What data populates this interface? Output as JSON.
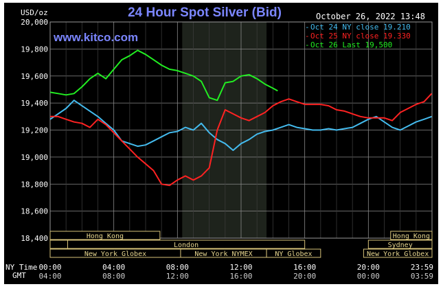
{
  "chart_data": {
    "type": "line",
    "title": "24 Hour Spot Silver (Bid)",
    "ylabel": "USD/oz",
    "watermark": "www.kitco.com",
    "timestamp": "October 26, 2022 13:48",
    "ylim": [
      18400,
      20000
    ],
    "yticks": [
      18400,
      18600,
      18800,
      19000,
      19200,
      19400,
      19600,
      19800,
      20000
    ],
    "ytick_labels": [
      "18,400",
      "18,600",
      "18,800",
      "19,000",
      "19,200",
      "19,400",
      "19,600",
      "19,800",
      "20,000"
    ],
    "x_range_hours": [
      0,
      24
    ],
    "xticks": [
      0,
      4,
      8,
      12,
      16,
      20,
      24
    ],
    "ny_time_label": "NY Time",
    "gmt_label": "GMT",
    "ny_time_ticks": [
      "00:00",
      "04:00",
      "08:00",
      "12:00",
      "16:00",
      "20:00",
      "23:59"
    ],
    "gmt_ticks": [
      "04:00",
      "08:00",
      "12:00",
      "16:00",
      "20:00",
      "00:00",
      "03:59"
    ],
    "shaded_region_hours": [
      8.3,
      13.6
    ],
    "grid": true,
    "legend_position": "top-right",
    "series": [
      {
        "name": "Oct 24 NY close 19.210",
        "color": "#44bbee",
        "x": [
          0,
          0.5,
          1,
          1.5,
          2,
          2.5,
          3,
          3.5,
          4,
          4.5,
          5,
          5.5,
          6,
          6.5,
          7,
          7.5,
          8,
          8.5,
          9,
          9.5,
          10,
          10.5,
          11,
          11.5,
          12,
          12.5,
          13,
          13.5,
          14,
          14.5,
          15,
          15.5,
          16,
          16.5,
          17,
          17.5,
          18,
          18.5,
          19,
          19.5,
          20,
          20.5,
          21,
          21.5,
          22,
          22.5,
          23,
          23.5,
          23.98
        ],
        "y": [
          19280,
          19320,
          19360,
          19420,
          19380,
          19340,
          19300,
          19250,
          19200,
          19120,
          19100,
          19080,
          19090,
          19120,
          19150,
          19180,
          19190,
          19220,
          19200,
          19250,
          19180,
          19130,
          19100,
          19050,
          19100,
          19130,
          19170,
          19190,
          19200,
          19220,
          19240,
          19220,
          19210,
          19200,
          19200,
          19210,
          19200,
          19210,
          19220,
          19250,
          19280,
          19300,
          19260,
          19220,
          19200,
          19230,
          19260,
          19280,
          19300
        ]
      },
      {
        "name": "Oct 25 NY close 19.330",
        "color": "#ff2222",
        "x": [
          0,
          0.5,
          1,
          1.5,
          2,
          2.5,
          3,
          3.5,
          4,
          4.5,
          5,
          5.5,
          6,
          6.5,
          7,
          7.5,
          8,
          8.5,
          9,
          9.5,
          10,
          10.5,
          11,
          11.5,
          12,
          12.5,
          13,
          13.5,
          14,
          14.5,
          15,
          15.5,
          16,
          16.5,
          17,
          17.5,
          18,
          18.5,
          19,
          19.5,
          20,
          20.5,
          21,
          21.5,
          22,
          22.5,
          23,
          23.5,
          23.98
        ],
        "y": [
          19300,
          19300,
          19280,
          19260,
          19250,
          19220,
          19280,
          19240,
          19180,
          19120,
          19060,
          19000,
          18950,
          18900,
          18800,
          18790,
          18830,
          18860,
          18830,
          18860,
          18920,
          19200,
          19350,
          19320,
          19290,
          19270,
          19300,
          19330,
          19380,
          19410,
          19430,
          19410,
          19390,
          19390,
          19390,
          19380,
          19350,
          19340,
          19320,
          19300,
          19290,
          19290,
          19290,
          19270,
          19330,
          19360,
          19390,
          19410,
          19470
        ]
      },
      {
        "name": "Oct 26 Last 19,500",
        "color": "#22ee22",
        "x": [
          0,
          0.5,
          1,
          1.5,
          2,
          2.5,
          3,
          3.5,
          4,
          4.5,
          5,
          5.5,
          6,
          6.5,
          7,
          7.5,
          8,
          8.5,
          9,
          9.5,
          10,
          10.5,
          11,
          11.5,
          12,
          12.5,
          13,
          13.5,
          14,
          14.3
        ],
        "y": [
          19480,
          19470,
          19460,
          19470,
          19520,
          19580,
          19620,
          19580,
          19650,
          19720,
          19750,
          19790,
          19760,
          19720,
          19680,
          19650,
          19640,
          19620,
          19600,
          19560,
          19440,
          19420,
          19550,
          19560,
          19600,
          19610,
          19580,
          19540,
          19510,
          19490
        ]
      }
    ],
    "market_rows": [
      [
        {
          "label": "Hong Kong",
          "start": 0,
          "end": 6.9
        },
        {
          "label": "Hong Kong",
          "start": 21.4,
          "end": 24
        }
      ],
      [
        {
          "label": "",
          "start": 0,
          "end": 1.1
        },
        {
          "label": "London",
          "start": 1.1,
          "end": 16
        },
        {
          "label": "Sydney",
          "start": 20,
          "end": 24
        }
      ],
      [
        {
          "label": "New York Globex",
          "start": 0,
          "end": 8.2
        },
        {
          "label": "New York NYMEX",
          "start": 8.2,
          "end": 13.6
        },
        {
          "label": "NY Globex",
          "start": 13.6,
          "end": 17
        },
        {
          "label": "New York Globex",
          "start": 19.7,
          "end": 24
        }
      ]
    ]
  }
}
